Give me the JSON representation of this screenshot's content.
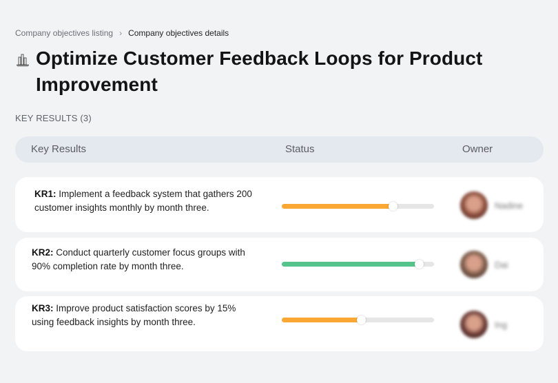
{
  "breadcrumb": {
    "parent": "Company objectives listing",
    "separator": "›",
    "current": "Company objectives details"
  },
  "objective": {
    "icon": "cityscape-icon",
    "title": "Optimize Customer Feedback Loops for Product Improvement"
  },
  "key_results_section": {
    "label": "KEY RESULTS (3)"
  },
  "table": {
    "columns": [
      "Key Results",
      "Status",
      "Owner"
    ]
  },
  "key_results": [
    {
      "id": "KR1:",
      "text": " Implement a feedback system that gathers 200 customer insights monthly by month three.",
      "progress_percent": 73,
      "progress_color": "#fba733",
      "owner_name": "Nadine",
      "avatar_color": "#8a4a3a"
    },
    {
      "id": "KR2:",
      "text": " Conduct quarterly customer focus groups with 90% completion rate by month three.",
      "progress_percent": 90,
      "progress_color": "#55c48c",
      "owner_name": "Dai",
      "avatar_color": "#7a5a48"
    },
    {
      "id": "KR3:",
      "text": " Improve product satisfaction scores by 15% using feedback insights by month three.",
      "progress_percent": 52,
      "progress_color": "#fba733",
      "owner_name": "Ing",
      "avatar_color": "#6a3a34"
    }
  ]
}
